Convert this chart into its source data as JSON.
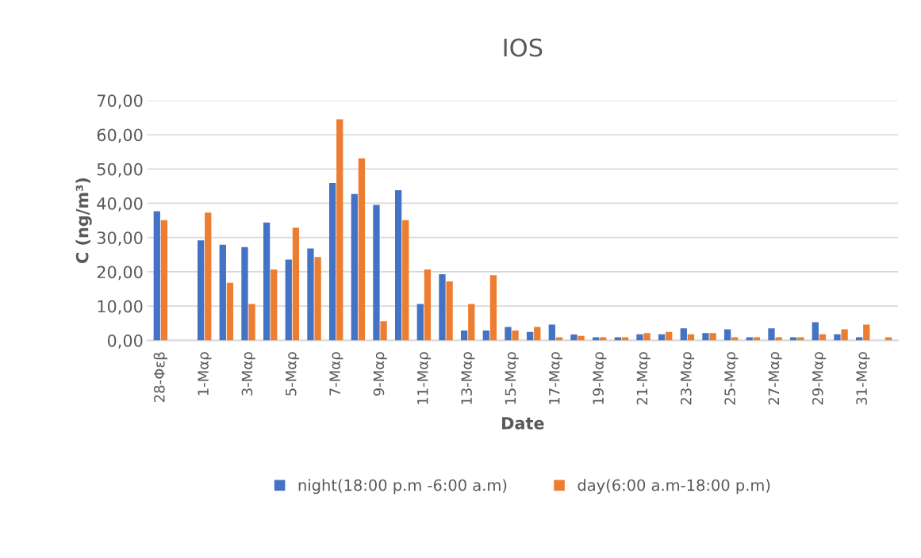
{
  "chart_data": {
    "type": "bar",
    "title": "IOS",
    "xlabel": "Date",
    "ylabel": "C (ng/m³)",
    "categories": [
      "28-Φεβ",
      null,
      "1-Μαρ",
      null,
      "3-Μαρ",
      null,
      "5-Μαρ",
      null,
      "7-Μαρ",
      null,
      "9-Μαρ",
      null,
      "11-Μαρ",
      null,
      "13-Μαρ",
      null,
      "15-Μαρ",
      null,
      "17-Μαρ",
      null,
      "19-Μαρ",
      null,
      "21-Μαρ",
      null,
      "23-Μαρ",
      null,
      "25-Μαρ",
      null,
      "27-Μαρ",
      null,
      "29-Μαρ",
      null,
      "31-Μαρ",
      null
    ],
    "series": [
      {
        "name": "night(18:00 p.m -6:00 a.m)",
        "color": "#4472c4",
        "values": [
          37.7,
          null,
          29.2,
          27.9,
          27.2,
          34.4,
          23.6,
          26.8,
          45.9,
          42.7,
          39.5,
          43.8,
          10.6,
          19.3,
          2.9,
          2.9,
          3.9,
          2.5,
          4.6,
          1.7,
          0.9,
          0.9,
          1.8,
          1.8,
          3.5,
          2.1,
          3.2,
          0.9,
          3.5,
          0.9,
          5.3,
          1.8,
          0.9,
          null
        ]
      },
      {
        "name": "day(6:00 a.m-18:00 p.m)",
        "color": "#ed7d31",
        "values": [
          35.1,
          null,
          37.3,
          16.8,
          10.6,
          20.7,
          32.9,
          24.3,
          64.5,
          53.1,
          5.6,
          35.1,
          20.7,
          17.2,
          10.6,
          19.0,
          2.9,
          3.9,
          0.9,
          1.3,
          0.9,
          0.9,
          2.1,
          2.5,
          1.8,
          2.1,
          0.9,
          0.9,
          0.9,
          0.9,
          1.8,
          3.2,
          4.6,
          0.9
        ]
      }
    ],
    "ylim": [
      0,
      70
    ],
    "yticks": [
      {
        "value": 0,
        "label": "0,00"
      },
      {
        "value": 10,
        "label": "10,00"
      },
      {
        "value": 20,
        "label": "20,00"
      },
      {
        "value": 30,
        "label": "30,00"
      },
      {
        "value": 40,
        "label": "40,00"
      },
      {
        "value": 50,
        "label": "50,00"
      },
      {
        "value": 60,
        "label": "60,00"
      },
      {
        "value": 70,
        "label": "70,00"
      }
    ],
    "grid": "y",
    "legend": "bottom"
  }
}
